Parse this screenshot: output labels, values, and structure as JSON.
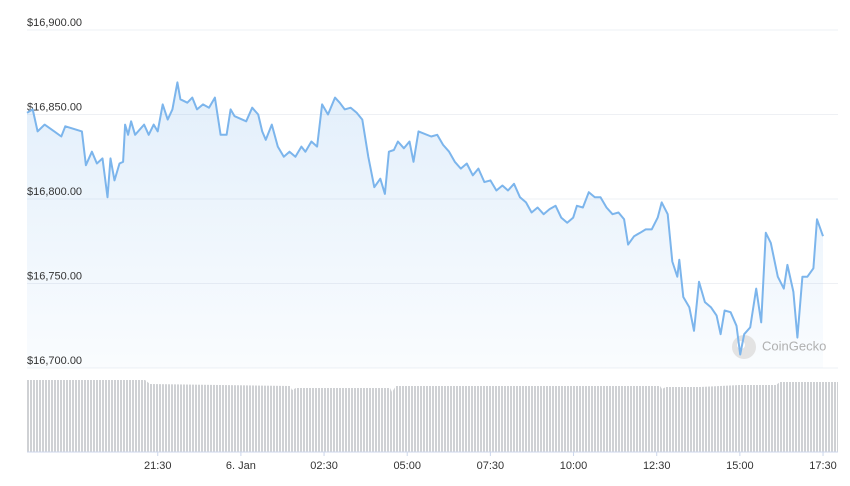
{
  "chart_data": {
    "type": "line",
    "color": "#7cb5ec",
    "grid": true,
    "watermark": "CoinGecko",
    "x": [
      -6.43,
      -6.26,
      -6.11,
      -5.9,
      -5.61,
      -5.4,
      -5.28,
      -4.78,
      -4.66,
      -4.48,
      -4.33,
      -4.16,
      -4.01,
      -3.92,
      -3.8,
      -3.65,
      -3.54,
      -3.48,
      -3.39,
      -3.3,
      -3.18,
      -2.91,
      -2.77,
      -2.62,
      -2.5,
      -2.35,
      -2.2,
      -2.06,
      -1.91,
      -1.82,
      -1.61,
      -1.46,
      -1.32,
      -1.14,
      -0.96,
      -0.78,
      -0.61,
      -0.43,
      -0.31,
      -0.19,
      0.16,
      0.34,
      0.52,
      0.64,
      0.75,
      0.93,
      1.11,
      1.29,
      1.46,
      1.64,
      1.82,
      1.94,
      2.12,
      2.29,
      2.44,
      2.62,
      2.83,
      2.97,
      3.12,
      3.3,
      3.48,
      3.65,
      3.83,
      4.01,
      4.19,
      4.33,
      4.45,
      4.6,
      4.72,
      4.9,
      5.07,
      5.19,
      5.34,
      5.72,
      5.9,
      6.08,
      6.26,
      6.43,
      6.61,
      6.79,
      6.97,
      7.14,
      7.32,
      7.5,
      7.68,
      7.86,
      8.03,
      8.21,
      8.39,
      8.57,
      8.74,
      8.92,
      9.1,
      9.28,
      9.46,
      9.63,
      9.81,
      9.99,
      10.1,
      10.28,
      10.46,
      10.64,
      10.81,
      10.99,
      11.17,
      11.35,
      11.52,
      11.64,
      11.82,
      12.0,
      12.17,
      12.35,
      12.53,
      12.65,
      12.83,
      12.97,
      13.12,
      13.18,
      13.3,
      13.48,
      13.62,
      13.77,
      13.95,
      14.13,
      14.3,
      14.42,
      14.54,
      14.72,
      14.9,
      15.01,
      15.13,
      15.31,
      15.49,
      15.64,
      15.78,
      15.93,
      16.14,
      16.32,
      16.43,
      16.61,
      16.73,
      16.88,
      17.03,
      17.21,
      17.32,
      17.5
    ],
    "values": [
      16851,
      16853,
      16840,
      16844,
      16840,
      16837,
      16843,
      16840,
      16820,
      16828,
      16821,
      16824,
      16801,
      16824,
      16811,
      16821,
      16822,
      16844,
      16838,
      16846,
      16838,
      16844,
      16838,
      16844,
      16840,
      16856,
      16847,
      16853,
      16869,
      16859,
      16857,
      16860,
      16853,
      16856,
      16854,
      16860,
      16838,
      16838,
      16853,
      16849,
      16846,
      16854,
      16850,
      16840,
      16835,
      16844,
      16831,
      16825,
      16828,
      16825,
      16831,
      16828,
      16834,
      16831,
      16856,
      16850,
      16860,
      16857,
      16853,
      16854,
      16851,
      16847,
      16825,
      16807,
      16812,
      16803,
      16828,
      16829,
      16834,
      16830,
      16834,
      16822,
      16840,
      16837,
      16838,
      16832,
      16828,
      16822,
      16818,
      16821,
      16814,
      16818,
      16810,
      16811,
      16805,
      16808,
      16805,
      16809,
      16801,
      16798,
      16792,
      16795,
      16791,
      16794,
      16796,
      16789,
      16786,
      16789,
      16796,
      16795,
      16804,
      16801,
      16801,
      16795,
      16791,
      16792,
      16788,
      16773,
      16778,
      16780,
      16782,
      16782,
      16789,
      16798,
      16791,
      16763,
      16754,
      16764,
      16742,
      16736,
      16722,
      16751,
      16739,
      16736,
      16731,
      16720,
      16734,
      16733,
      16725,
      16708,
      16720,
      16724,
      16747,
      16727,
      16780,
      16774,
      16754,
      16747,
      16761,
      16745,
      16718,
      16754,
      16754,
      16759,
      16788,
      16778
    ],
    "xlim": [
      -6.43,
      17.95
    ],
    "ylim": [
      16700,
      16900
    ],
    "xticks": [
      {
        "value": -2.5,
        "label": "21:30"
      },
      {
        "value": 0,
        "label": "6. Jan"
      },
      {
        "value": 2.5,
        "label": "02:30"
      },
      {
        "value": 5,
        "label": "05:00"
      },
      {
        "value": 7.5,
        "label": "07:30"
      },
      {
        "value": 10,
        "label": "10:00"
      },
      {
        "value": 12.5,
        "label": "12:30"
      },
      {
        "value": 15,
        "label": "15:00"
      },
      {
        "value": 17.5,
        "label": "17:30"
      }
    ],
    "yticks": [
      {
        "value": 16700,
        "label": "$16,700.00"
      },
      {
        "value": 16750,
        "label": "$16,750.00"
      },
      {
        "value": 16800,
        "label": "$16,800.00"
      },
      {
        "value": 16850,
        "label": "$16,850.00"
      },
      {
        "value": 16900,
        "label": "$16,900.00"
      }
    ]
  }
}
